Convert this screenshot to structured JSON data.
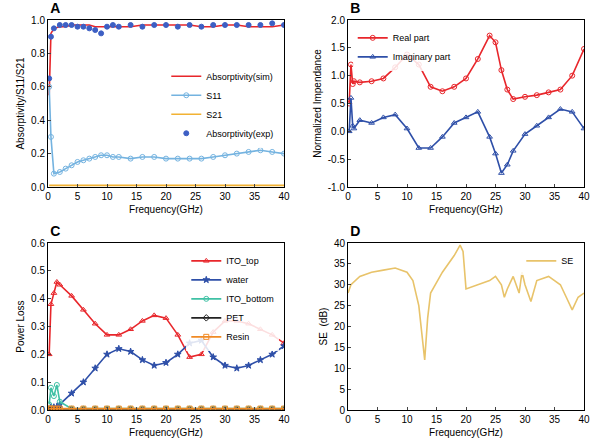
{
  "chart_data": [
    {
      "type": "line",
      "title": "A",
      "x_label": "Frequency(GHz)",
      "y_label": "Absorptivity/S11/S21",
      "xlim": [
        0,
        40
      ],
      "xticks": [
        0,
        5,
        10,
        15,
        20,
        25,
        30,
        35,
        40
      ],
      "ylim": [
        0,
        1.0
      ],
      "yticks": [
        {
          "value": 0,
          "label": "0.0"
        },
        0.2,
        0.4,
        0.6,
        0.8,
        {
          "value": 1.0,
          "label": "1.0"
        }
      ],
      "grid": false,
      "legend": "center right",
      "x": [
        0.2,
        0.5,
        1,
        2,
        3,
        4,
        5,
        6,
        7,
        8,
        9,
        10,
        11,
        12,
        14,
        16,
        18,
        20,
        22,
        24,
        26,
        28,
        30,
        32,
        34,
        36,
        38,
        40
      ],
      "series": [
        {
          "name": "Absorptivity(sim)",
          "color": "#e8262b",
          "type": "line",
          "line_style": "solid",
          "marker": "none",
          "values": [
            0.55,
            0.92,
            0.95,
            0.96,
            0.96,
            0.97,
            0.97,
            0.97,
            0.97,
            0.96,
            0.96,
            0.96,
            0.96,
            0.96,
            0.96,
            0.97,
            0.97,
            0.97,
            0.97,
            0.97,
            0.96,
            0.96,
            0.97,
            0.97,
            0.96,
            0.96,
            0.96,
            0.97
          ]
        },
        {
          "name": "S11",
          "color": "#74b3e0",
          "type": "line",
          "line_style": "solid",
          "marker": "circle-open",
          "values": [
            0.6,
            0.3,
            0.08,
            0.09,
            0.11,
            0.13,
            0.15,
            0.16,
            0.17,
            0.18,
            0.19,
            0.19,
            0.18,
            0.18,
            0.17,
            0.18,
            0.18,
            0.17,
            0.17,
            0.17,
            0.17,
            0.18,
            0.19,
            0.2,
            0.21,
            0.22,
            0.21,
            0.2
          ]
        },
        {
          "name": "S21",
          "color": "#f2b233",
          "type": "line",
          "line_style": "solid",
          "marker": "none",
          "values": [
            0.01,
            0.01,
            0.01,
            0.01,
            0.01,
            0.01,
            0.01,
            0.01,
            0.01,
            0.01,
            0.01,
            0.01,
            0.01,
            0.01,
            0.01,
            0.01,
            0.01,
            0.01,
            0.01,
            0.01,
            0.01,
            0.01,
            0.01,
            0.01,
            0.01,
            0.01,
            0.01,
            0.01
          ]
        },
        {
          "name": "Absorptivity(exp)",
          "color": "#3d5fc4",
          "type": "scatter",
          "line_style": "none",
          "marker": "circle",
          "values": [
            0.65,
            0.9,
            0.95,
            0.97,
            0.97,
            0.97,
            0.96,
            0.96,
            0.95,
            0.94,
            0.92,
            0.96,
            0.97,
            0.96,
            0.97,
            0.96,
            0.97,
            0.97,
            0.96,
            0.97,
            0.96,
            0.97,
            0.97,
            0.97,
            0.97,
            0.97,
            0.98,
            0.97
          ]
        }
      ]
    },
    {
      "type": "line",
      "title": "B",
      "x_label": "Frequency(GHz)",
      "y_label": "Normalized Impendance",
      "xlim": [
        0,
        40
      ],
      "xticks": [
        0,
        5,
        10,
        15,
        20,
        25,
        30,
        35,
        40
      ],
      "ylim": [
        -1.0,
        2.0
      ],
      "yticks": [
        {
          "value": -1.0,
          "label": "-1.0"
        },
        -0.5,
        {
          "value": 0,
          "label": "0.0"
        },
        0.5,
        {
          "value": 1.0,
          "label": "1.0"
        },
        1.5,
        {
          "value": 2.0,
          "label": "2.0"
        }
      ],
      "grid": false,
      "legend": "top left",
      "x": [
        0.2,
        0.5,
        0.8,
        1,
        2,
        4,
        6,
        8,
        10,
        12,
        14,
        16,
        18,
        20,
        22,
        24,
        25,
        26,
        27,
        28,
        30,
        32,
        34,
        36,
        38,
        40
      ],
      "series": [
        {
          "name": "Real part",
          "color": "#e8262b",
          "type": "line",
          "line_style": "solid",
          "marker": "circle-open",
          "values": [
            0.5,
            1.2,
            0.85,
            0.9,
            0.88,
            0.9,
            0.95,
            1.15,
            1.38,
            1.2,
            0.8,
            0.72,
            0.8,
            0.95,
            1.3,
            1.72,
            1.6,
            1.1,
            0.75,
            0.58,
            0.62,
            0.65,
            0.7,
            0.75,
            1.0,
            1.48
          ]
        },
        {
          "name": "Imaginary part",
          "color": "#2e4fa8",
          "type": "line",
          "line_style": "solid",
          "marker": "triangle-up-open",
          "values": [
            0.0,
            0.6,
            0.1,
            0.05,
            0.2,
            0.15,
            0.25,
            0.3,
            0.05,
            -0.3,
            -0.3,
            -0.1,
            0.15,
            0.25,
            0.35,
            -0.1,
            -0.4,
            -0.75,
            -0.6,
            -0.35,
            -0.05,
            0.1,
            0.25,
            0.4,
            0.35,
            0.05
          ]
        }
      ]
    },
    {
      "type": "line",
      "title": "C",
      "x_label": "Frequency(GHz)",
      "y_label": "Power Loss",
      "xlim": [
        0,
        40
      ],
      "xticks": [
        0,
        5,
        10,
        15,
        20,
        25,
        30,
        35,
        40
      ],
      "ylim": [
        0,
        0.6
      ],
      "yticks": [
        {
          "value": 0,
          "label": "0.0"
        },
        0.1,
        0.2,
        0.3,
        0.4,
        0.5,
        0.6
      ],
      "grid": false,
      "legend": "top right",
      "x": [
        0.2,
        0.5,
        1,
        1.5,
        2,
        4,
        6,
        8,
        10,
        12,
        14,
        16,
        18,
        20,
        22,
        24,
        26,
        28,
        30,
        32,
        34,
        36,
        38,
        40
      ],
      "series": [
        {
          "name": "ITO_top",
          "color": "#e8262b",
          "type": "line",
          "line_style": "solid",
          "marker": "triangle-up-open",
          "values": [
            0.2,
            0.38,
            0.42,
            0.46,
            0.45,
            0.41,
            0.36,
            0.31,
            0.27,
            0.27,
            0.29,
            0.32,
            0.34,
            0.33,
            0.27,
            0.19,
            0.2,
            0.28,
            0.32,
            0.32,
            0.31,
            0.29,
            0.27,
            0.24
          ]
        },
        {
          "name": "water",
          "color": "#2e4fa8",
          "type": "line",
          "line_style": "solid",
          "marker": "star",
          "values": [
            0,
            0.01,
            0.01,
            0.01,
            0.02,
            0.06,
            0.1,
            0.15,
            0.2,
            0.22,
            0.21,
            0.18,
            0.16,
            0.17,
            0.2,
            0.24,
            0.25,
            0.19,
            0.16,
            0.15,
            0.16,
            0.18,
            0.2,
            0.23
          ]
        },
        {
          "name": "ITO_bottom",
          "color": "#3fc1a5",
          "type": "line",
          "line_style": "solid",
          "marker": "circle-open",
          "values": [
            0.02,
            0.08,
            0.05,
            0.09,
            0.03,
            0.005,
            0.005,
            0.005,
            0.005,
            0.005,
            0.005,
            0.005,
            0.005,
            0.005,
            0.005,
            0.005,
            0.005,
            0.005,
            0.005,
            0.005,
            0.005,
            0.005,
            0.005,
            0.005
          ]
        },
        {
          "name": "PET",
          "color": "#222222",
          "type": "line",
          "line_style": "solid",
          "marker": "diamond-open",
          "values": [
            0,
            0,
            0,
            0,
            0,
            0,
            0,
            0,
            0,
            0,
            0,
            0,
            0,
            0,
            0,
            0,
            0,
            0,
            0,
            0,
            0,
            0,
            0,
            0
          ]
        },
        {
          "name": "Resin",
          "color": "#f08a24",
          "type": "line",
          "line_style": "solid",
          "marker": "square-open",
          "values": [
            0.005,
            0.005,
            0.005,
            0.005,
            0.005,
            0.005,
            0.005,
            0.005,
            0.005,
            0.005,
            0.005,
            0.005,
            0.005,
            0.005,
            0.005,
            0.005,
            0.005,
            0.005,
            0.005,
            0.005,
            0.005,
            0.005,
            0.005,
            0.005
          ]
        }
      ]
    },
    {
      "type": "line",
      "title": "D",
      "x_label": "Frequency(GHz)",
      "y_label": "SE  (dB)",
      "xlim": [
        0,
        40
      ],
      "xticks": [
        0,
        5,
        10,
        15,
        20,
        25,
        30,
        35,
        40
      ],
      "ylim": [
        0,
        40
      ],
      "yticks": [
        0,
        5,
        10,
        15,
        20,
        25,
        30,
        35,
        40
      ],
      "grid": false,
      "legend": "top right",
      "x": [
        0,
        0.5,
        2,
        4,
        6,
        8,
        10,
        11,
        12,
        12.5,
        13,
        13.5,
        14,
        16,
        18,
        19,
        19.5,
        20,
        22,
        24,
        25,
        26,
        26.5,
        27,
        28,
        29,
        29.5,
        30,
        31,
        32,
        34,
        36,
        37,
        38,
        39,
        40
      ],
      "series": [
        {
          "name": "SE",
          "color": "#e8c36a",
          "type": "line",
          "line_style": "solid",
          "marker": "none",
          "values": [
            28,
            30,
            32,
            33,
            33.5,
            34,
            33,
            31,
            25,
            18,
            12,
            22,
            28,
            33,
            37,
            39.5,
            38,
            29,
            30,
            31,
            32,
            30,
            27,
            29,
            32,
            28,
            33,
            30,
            26,
            31,
            32,
            30,
            27,
            24,
            27,
            28
          ]
        }
      ]
    }
  ]
}
